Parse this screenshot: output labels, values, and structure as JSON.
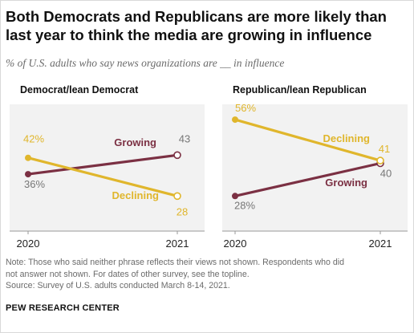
{
  "title": "Both Democrats and Republicans are more likely than last year to think the media are growing in influence",
  "subtitle": "% of U.S. adults who say news organizations are __ in influence",
  "colors": {
    "growing": "#7b3043",
    "declining": "#e0b62c",
    "panel_bg": "#f2f2f2",
    "axis": "#999999",
    "label_gray": "#777777"
  },
  "notes": [
    "Note: Those who said neither phrase reflects their views not shown. Respondents who did",
    "not answer not shown. For dates of other survey, see the topline.",
    "Source: Survey of U.S. adults conducted March 8-14, 2021."
  ],
  "source_label": "PEW RESEARCH CENTER",
  "chart_data": [
    {
      "type": "line",
      "title": "Democrat/lean Democrat",
      "x": [
        "2020",
        "2021"
      ],
      "series": [
        {
          "name": "Growing",
          "values": [
            36,
            43
          ],
          "labels": [
            "36%",
            "43"
          ]
        },
        {
          "name": "Declining",
          "values": [
            42,
            28
          ],
          "labels": [
            "42%",
            "28"
          ]
        }
      ]
    },
    {
      "type": "line",
      "title": "Republican/lean Republican",
      "x": [
        "2020",
        "2021"
      ],
      "series": [
        {
          "name": "Growing",
          "values": [
            28,
            40
          ],
          "labels": [
            "28%",
            "40"
          ]
        },
        {
          "name": "Declining",
          "values": [
            56,
            41
          ],
          "labels": [
            "56%",
            "41"
          ]
        }
      ]
    }
  ]
}
